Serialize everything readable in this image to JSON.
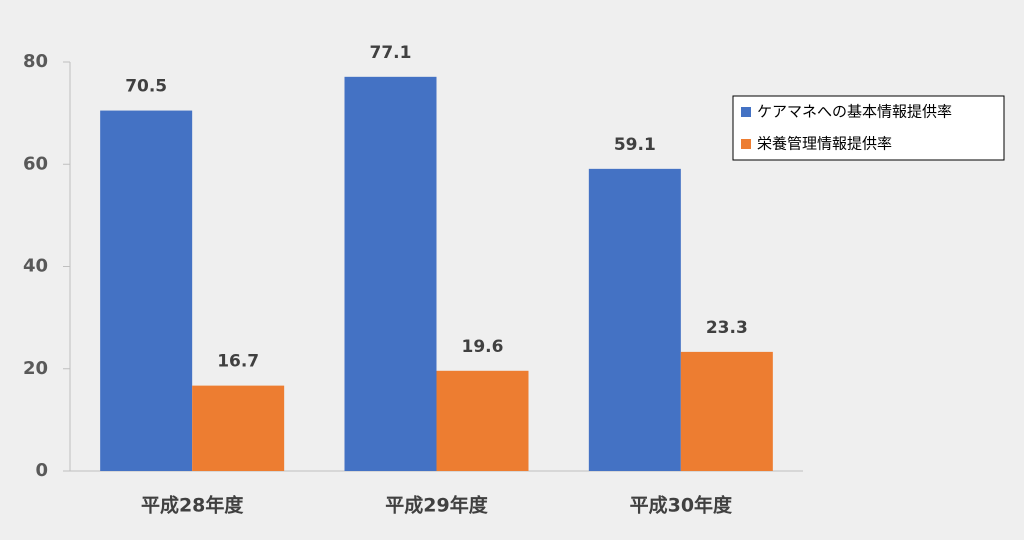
{
  "chart_data": {
    "type": "bar",
    "categories": [
      "平成28年度",
      "平成29年度",
      "平成30年度"
    ],
    "series": [
      {
        "name": "ケアマネへの基本情報提供率",
        "color": "#4472c4",
        "values": [
          70.5,
          77.1,
          59.1
        ]
      },
      {
        "name": "栄養管理情報提供率",
        "color": "#ed7d31",
        "values": [
          16.7,
          19.6,
          23.3
        ]
      }
    ],
    "ylim": [
      0,
      80
    ],
    "yticks": [
      0,
      20,
      40,
      60,
      80
    ],
    "grid": false,
    "legend": "right"
  }
}
